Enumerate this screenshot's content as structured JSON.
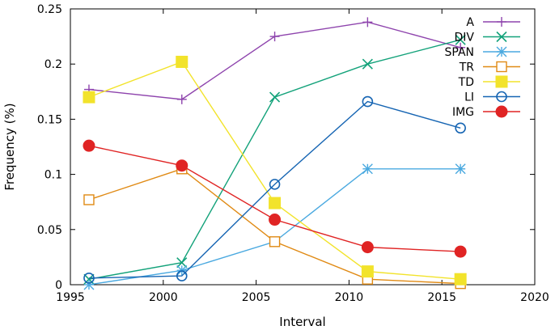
{
  "chart_data": {
    "type": "line",
    "title": "",
    "xlabel": "Interval",
    "ylabel": "Frequency (%)",
    "xlim": [
      1995,
      2020
    ],
    "ylim": [
      0,
      0.25
    ],
    "x_ticks": [
      1995,
      2000,
      2005,
      2010,
      2015,
      2020
    ],
    "y_ticks": [
      0,
      0.05,
      0.1,
      0.15,
      0.2,
      0.25
    ],
    "y_tick_labels": [
      "0",
      "0.05",
      "0.1",
      "0.15",
      "0.2",
      "0.25"
    ],
    "grid": false,
    "legend_position": "top-right",
    "x": [
      1996,
      2001,
      2006,
      2011,
      2016
    ],
    "series": [
      {
        "name": "A",
        "color": "#8e44ad",
        "marker": "plus",
        "values": [
          0.177,
          0.168,
          0.225,
          0.238,
          0.215
        ]
      },
      {
        "name": "DIV",
        "color": "#13a27a",
        "marker": "x",
        "values": [
          0.005,
          0.02,
          0.17,
          0.2,
          0.222
        ]
      },
      {
        "name": "SPAN",
        "color": "#4aa9e0",
        "marker": "star",
        "values": [
          0.0,
          0.013,
          0.039,
          0.105,
          0.105
        ]
      },
      {
        "name": "TR",
        "color": "#e08a14",
        "marker": "square-open",
        "values": [
          0.077,
          0.105,
          0.039,
          0.005,
          0.001
        ]
      },
      {
        "name": "TD",
        "color": "#f2e32b",
        "marker": "square-filled",
        "values": [
          0.17,
          0.202,
          0.074,
          0.012,
          0.005
        ]
      },
      {
        "name": "LI",
        "color": "#1665b3",
        "marker": "circle-open",
        "values": [
          0.006,
          0.008,
          0.091,
          0.166,
          0.142
        ]
      },
      {
        "name": "IMG",
        "color": "#e02424",
        "marker": "circle-filled",
        "values": [
          0.126,
          0.108,
          0.059,
          0.034,
          0.03
        ]
      }
    ]
  }
}
